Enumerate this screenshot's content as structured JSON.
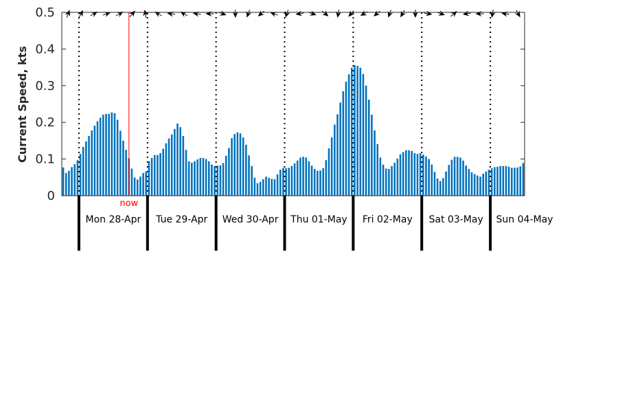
{
  "chart_data": {
    "type": "bar",
    "ylabel": "Current Speed, kts",
    "ylim": [
      0,
      0.5
    ],
    "yticks": [
      0,
      0.1,
      0.2,
      0.3,
      0.4,
      0.5
    ],
    "ytick_labels": [
      "0",
      "0.1",
      "0.2",
      "0.3",
      "0.4",
      "0.5"
    ],
    "interval_hours": 1,
    "start_hour_offset": -6,
    "days": [
      "Mon 28-Apr",
      "Tue 29-Apr",
      "Wed 30-Apr",
      "Thu 01-May",
      "Fri 02-May",
      "Sat 03-May",
      "Sun 04-May"
    ],
    "now_label": "now",
    "now_hour": 17.5,
    "bar_color": "#0072bd",
    "now_color": "#ff0000",
    "values": [
      0.077,
      0.062,
      0.068,
      0.078,
      0.086,
      0.097,
      0.114,
      0.133,
      0.148,
      0.163,
      0.178,
      0.191,
      0.203,
      0.213,
      0.221,
      0.223,
      0.223,
      0.227,
      0.225,
      0.207,
      0.177,
      0.15,
      0.125,
      0.102,
      0.074,
      0.05,
      0.044,
      0.052,
      0.062,
      0.066,
      0.094,
      0.103,
      0.111,
      0.111,
      0.116,
      0.128,
      0.143,
      0.156,
      0.167,
      0.182,
      0.197,
      0.187,
      0.163,
      0.125,
      0.094,
      0.09,
      0.094,
      0.099,
      0.103,
      0.103,
      0.1,
      0.094,
      0.085,
      0.081,
      0.082,
      0.083,
      0.089,
      0.109,
      0.13,
      0.157,
      0.168,
      0.173,
      0.17,
      0.159,
      0.139,
      0.11,
      0.081,
      0.049,
      0.034,
      0.038,
      0.045,
      0.052,
      0.049,
      0.046,
      0.045,
      0.058,
      0.071,
      0.076,
      0.075,
      0.076,
      0.081,
      0.088,
      0.096,
      0.104,
      0.106,
      0.104,
      0.094,
      0.082,
      0.073,
      0.068,
      0.069,
      0.075,
      0.097,
      0.129,
      0.159,
      0.194,
      0.222,
      0.254,
      0.285,
      0.311,
      0.331,
      0.349,
      0.356,
      0.354,
      0.349,
      0.332,
      0.3,
      0.262,
      0.221,
      0.178,
      0.141,
      0.104,
      0.085,
      0.074,
      0.073,
      0.081,
      0.09,
      0.101,
      0.113,
      0.119,
      0.124,
      0.124,
      0.122,
      0.116,
      0.114,
      0.116,
      0.112,
      0.107,
      0.1,
      0.085,
      0.065,
      0.047,
      0.04,
      0.048,
      0.066,
      0.084,
      0.098,
      0.106,
      0.106,
      0.104,
      0.096,
      0.082,
      0.073,
      0.064,
      0.059,
      0.055,
      0.052,
      0.06,
      0.066,
      0.071,
      0.075,
      0.078,
      0.079,
      0.081,
      0.081,
      0.081,
      0.079,
      0.076,
      0.076,
      0.077,
      0.08,
      0.089
    ],
    "direction_arrows_deg": [
      20,
      30,
      60,
      70,
      60,
      40,
      350,
      300,
      280,
      300,
      280,
      270,
      110,
      180,
      200,
      230,
      290,
      200,
      260,
      110,
      130,
      190,
      220,
      240,
      230,
      200,
      210,
      180,
      100,
      110,
      50,
      260,
      270,
      190,
      280,
      150
    ]
  }
}
